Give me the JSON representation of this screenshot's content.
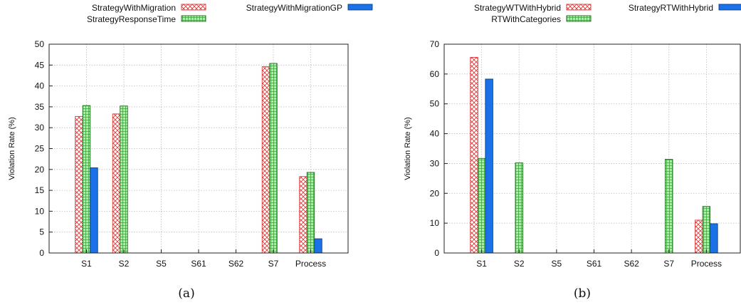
{
  "chart_data": [
    {
      "type": "bar",
      "caption": "(a)",
      "ylabel": "Violation Rate (%)",
      "xlabel": "",
      "ylim": [
        0,
        50
      ],
      "yticks": [
        0,
        5,
        10,
        15,
        20,
        25,
        30,
        35,
        40,
        45,
        50
      ],
      "grid": true,
      "legend_position": "top",
      "categories": [
        "S1",
        "S2",
        "S5",
        "S61",
        "S62",
        "S7",
        "Process"
      ],
      "series": [
        {
          "name": "StrategyWithMigration",
          "style": "red-crosshatch",
          "color": "#e03030",
          "values": [
            32.7,
            33.3,
            0,
            0,
            0,
            44.6,
            18.3
          ]
        },
        {
          "name": "StrategyResponseTime",
          "style": "green-grid",
          "color": "#3aa33a",
          "values": [
            35.3,
            35.2,
            0,
            0,
            0,
            45.4,
            19.3
          ]
        },
        {
          "name": "StrategyWithMigrationGP",
          "style": "solid-blue",
          "color": "#1a72e8",
          "values": [
            20.4,
            0,
            0,
            0,
            0,
            0,
            3.4
          ]
        }
      ]
    },
    {
      "type": "bar",
      "caption": "(b)",
      "ylabel": "Violation Rate (%)",
      "xlabel": "",
      "ylim": [
        0,
        70
      ],
      "yticks": [
        0,
        10,
        20,
        30,
        40,
        50,
        60,
        70
      ],
      "grid": true,
      "legend_position": "top",
      "categories": [
        "S1",
        "S2",
        "S5",
        "S61",
        "S62",
        "S7",
        "Process"
      ],
      "series": [
        {
          "name": "StrategyWTWithHybrid",
          "style": "red-crosshatch",
          "color": "#e03030",
          "values": [
            65.6,
            0,
            0,
            0,
            0,
            0,
            11.0
          ]
        },
        {
          "name": "RTWithCategories",
          "style": "green-grid",
          "color": "#3aa33a",
          "values": [
            31.7,
            30.2,
            0,
            0,
            0,
            31.4,
            15.6
          ]
        },
        {
          "name": "StrategyRTWithHybrid",
          "style": "solid-blue",
          "color": "#1a72e8",
          "values": [
            58.3,
            0,
            0,
            0,
            0,
            0,
            9.8
          ]
        }
      ]
    }
  ]
}
